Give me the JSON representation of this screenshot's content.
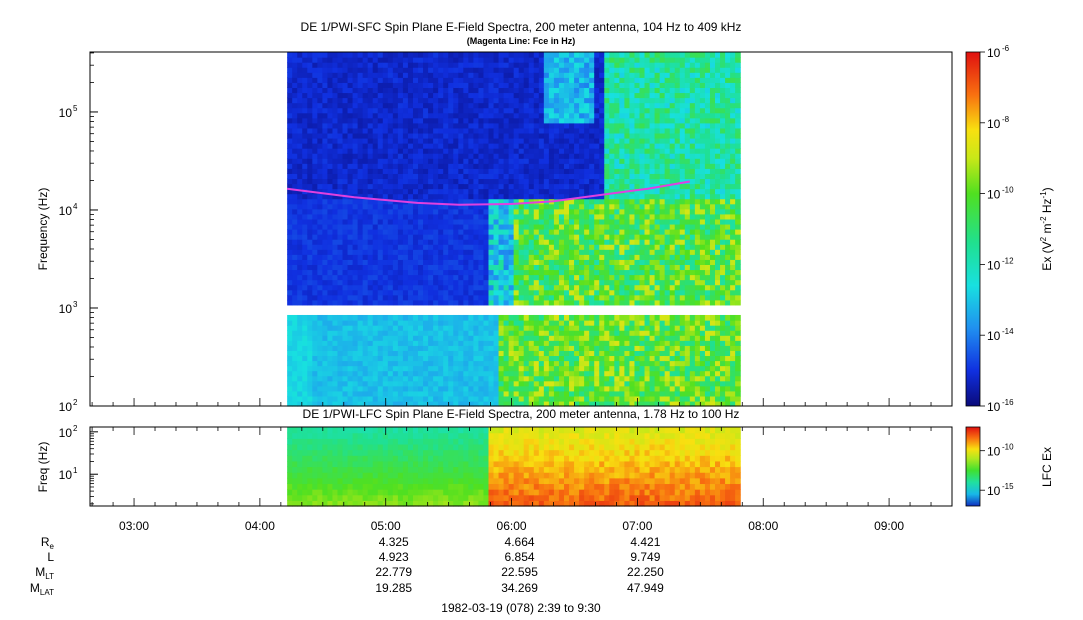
{
  "chart_data": [
    {
      "type": "heatmap",
      "title": "DE 1/PWI-SFC  Spin Plane E-Field Spectra, 200 meter antenna, 104 Hz to 409 kHz",
      "subtitle": "(Magenta Line: Fce in Hz)",
      "ylabel": "Frequency (Hz)",
      "yscale": "log",
      "ylim": [
        100,
        409000
      ],
      "yticks": [
        {
          "v": 100,
          "label": "10",
          "exp": "2"
        },
        {
          "v": 1000,
          "label": "10",
          "exp": "3"
        },
        {
          "v": 10000,
          "label": "10",
          "exp": "4"
        },
        {
          "v": 100000,
          "label": "10",
          "exp": "5"
        }
      ],
      "data_time_range": [
        "04:13",
        "07:49"
      ],
      "gap_frequency_range": [
        900,
        1000
      ],
      "colorbar": {
        "label_main": "Ex (V",
        "label_sup1": "2",
        "label_mid": " m",
        "label_sup2": "-2",
        "label_hz": " Hz",
        "label_sup3": "-1",
        "label_end": ")",
        "scale": "log",
        "range": [
          1e-16,
          1e-06
        ],
        "ticks": [
          {
            "v": -16,
            "label": "10",
            "exp": "-16"
          },
          {
            "v": -14,
            "label": "10",
            "exp": "-14"
          },
          {
            "v": -12,
            "label": "10",
            "exp": "-12"
          },
          {
            "v": -10,
            "label": "10",
            "exp": "-10"
          },
          {
            "v": -8,
            "label": "10",
            "exp": "-8"
          },
          {
            "v": -6,
            "label": "10",
            "exp": "-6"
          }
        ]
      },
      "fce_line": {
        "color": "#e040e0",
        "points": [
          [
            "04:13",
            16500
          ],
          [
            "04:45",
            13500
          ],
          [
            "05:15",
            11800
          ],
          [
            "05:35",
            11300
          ],
          [
            "06:00",
            11500
          ],
          [
            "06:20",
            12300
          ],
          [
            "06:45",
            14500
          ],
          [
            "07:05",
            16500
          ],
          [
            "07:25",
            19500
          ]
        ]
      }
    },
    {
      "type": "heatmap",
      "title": "DE 1/PWI-LFC  Spin Plane E-Field Spectra, 200 meter antenna, 1.78 Hz to 100 Hz",
      "ylabel": "Freq (Hz)",
      "yscale": "log",
      "ylim": [
        1.78,
        130
      ],
      "yticks": [
        {
          "v": 10,
          "label": "10",
          "exp": "1"
        },
        {
          "v": 100,
          "label": "10",
          "exp": "2"
        }
      ],
      "data_time_range": [
        "04:13",
        "07:49"
      ],
      "colorbar": {
        "label": "LFC Ex",
        "range": [
          1e-17,
          1e-07
        ],
        "ticks": [
          {
            "v": -15,
            "label": "10",
            "exp": "-15"
          },
          {
            "v": -10,
            "label": "10",
            "exp": "-10"
          }
        ]
      }
    }
  ],
  "time_axis": {
    "start": "02:39",
    "end": "09:30",
    "tick_labels": [
      "03:00",
      "04:00",
      "05:00",
      "06:00",
      "07:00",
      "08:00",
      "09:00"
    ]
  },
  "ephemeris": {
    "rows": [
      {
        "label": "R",
        "sub": "e",
        "values": [
          "4.325",
          "4.664",
          "4.421"
        ]
      },
      {
        "label": "L",
        "sub": "",
        "values": [
          "4.923",
          "6.854",
          "9.749"
        ]
      },
      {
        "label": "M",
        "sub": "LT",
        "values": [
          "22.779",
          "22.595",
          "22.250"
        ]
      },
      {
        "label": "M",
        "sub": "LAT",
        "values": [
          "19.285",
          "34.269",
          "47.949"
        ]
      }
    ],
    "times": [
      "05:00",
      "06:00",
      "07:00"
    ]
  },
  "footer": "1982-03-19 (078) 2:39 to 9:30"
}
